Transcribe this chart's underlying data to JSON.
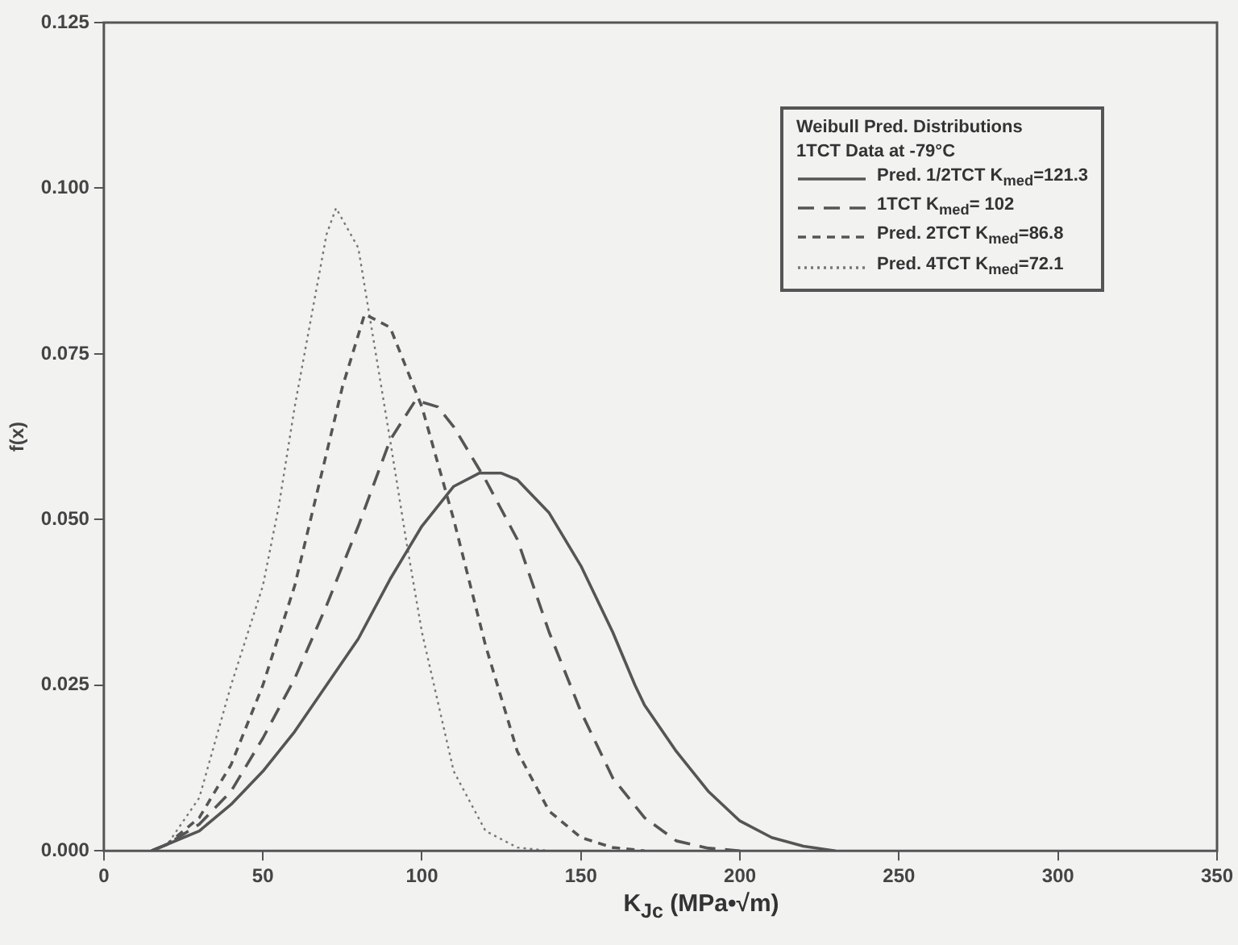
{
  "chart_data": {
    "type": "line",
    "xlabel": "K$_{Jc}$ (MPa•√m)",
    "ylabel": "f(x)",
    "legend_title": "Weibull Pred. Distributions\n1TCT Data at -79°C",
    "legend": "top right",
    "grid": false,
    "marker": "none",
    "xlim": [
      0,
      350
    ],
    "xticks": [
      0,
      50,
      100,
      150,
      200,
      250,
      300,
      350
    ],
    "ylim": [
      0,
      0.125
    ],
    "yticks": [
      {
        "value": 0,
        "label": "0.000"
      },
      {
        "value": 0.025,
        "label": "0.025"
      },
      {
        "value": 0.05,
        "label": "0.050"
      },
      {
        "value": 0.075,
        "label": "0.075"
      },
      {
        "value": 0.1,
        "label": "0.100"
      },
      {
        "value": 0.125,
        "label": "0.125"
      }
    ],
    "series": [
      {
        "name": "Pred. 1/2TCT K$_{med}$=121.3",
        "color": "#555555",
        "line_style": "solid",
        "x": [
          15,
          20,
          30,
          40,
          50,
          60,
          70,
          80,
          90,
          100,
          110,
          118,
          125,
          130,
          140,
          150,
          160,
          167,
          170,
          180,
          190,
          200,
          210,
          220,
          230
        ],
        "values": [
          0,
          0.001,
          0.003,
          0.007,
          0.012,
          0.018,
          0.025,
          0.032,
          0.041,
          0.049,
          0.055,
          0.057,
          0.057,
          0.056,
          0.051,
          0.043,
          0.033,
          0.025,
          0.022,
          0.015,
          0.009,
          0.0045,
          0.002,
          0.0007,
          0
        ]
      },
      {
        "name": "1TCT K$_{med}$= 102",
        "color": "#555555",
        "line_style": "dashed",
        "x": [
          15,
          20,
          30,
          40,
          50,
          60,
          70,
          80,
          90,
          98,
          105,
          110,
          120,
          130,
          140,
          150,
          160,
          170,
          180,
          190,
          200
        ],
        "values": [
          0,
          0.001,
          0.004,
          0.009,
          0.017,
          0.026,
          0.037,
          0.049,
          0.062,
          0.068,
          0.067,
          0.064,
          0.056,
          0.047,
          0.033,
          0.021,
          0.011,
          0.005,
          0.0015,
          0.0004,
          0
        ]
      },
      {
        "name": "Pred. 2TCT K$_{med}$=86.8",
        "color": "#555555",
        "line_style": "dashed",
        "x": [
          15,
          20,
          30,
          40,
          50,
          60,
          70,
          75,
          82,
          90,
          100,
          110,
          120,
          130,
          140,
          150,
          160,
          170
        ],
        "values": [
          0,
          0.001,
          0.005,
          0.013,
          0.025,
          0.04,
          0.06,
          0.07,
          0.081,
          0.079,
          0.067,
          0.05,
          0.031,
          0.015,
          0.006,
          0.002,
          0.0005,
          0
        ]
      },
      {
        "name": "Pred. 4TCT K$_{med}$=72.1",
        "color": "#777777",
        "line_style": "dotted",
        "x": [
          15,
          20,
          30,
          40,
          50,
          55,
          60,
          70,
          73,
          80,
          90,
          95,
          100,
          110,
          120,
          130,
          140
        ],
        "values": [
          0,
          0.001,
          0.008,
          0.025,
          0.04,
          0.052,
          0.067,
          0.093,
          0.097,
          0.091,
          0.062,
          0.047,
          0.033,
          0.012,
          0.003,
          0.0005,
          0
        ]
      }
    ]
  }
}
